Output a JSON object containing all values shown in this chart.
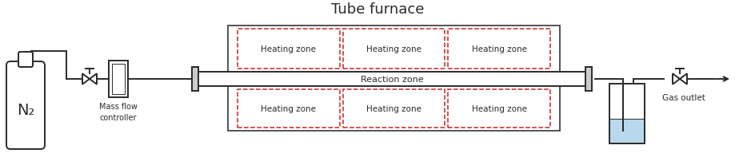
{
  "title": "Tube furnace",
  "title_fontsize": 13,
  "bg_color": "#ffffff",
  "line_color": "#2a2a2a",
  "heating_zone_label": "Heating zone",
  "reaction_zone_label": "Reaction zone",
  "n2_label": "N₂",
  "mass_flow_label": "Mass flow\ncontroller",
  "gas_outlet_label": "Gas outlet",
  "heating_zone_border_color": "#cc2222",
  "water_color": "#b8d8ed",
  "furnace_box_border": "#444444",
  "valve_size": 9,
  "lw_main": 1.4,
  "lw_thin": 1.0,
  "lw_furnace": 1.3
}
